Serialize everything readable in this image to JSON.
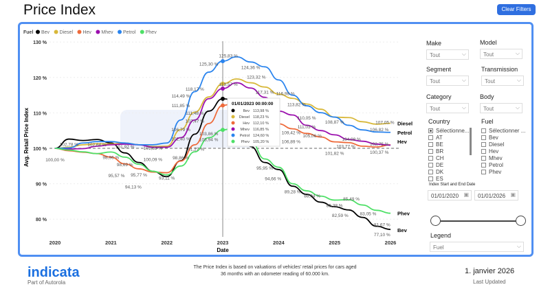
{
  "header": {
    "title": "Price Index",
    "clear_filters": "Clear Filters"
  },
  "filters": {
    "make": {
      "label": "Make",
      "value": "Tout"
    },
    "model": {
      "label": "Model",
      "value": "Tout"
    },
    "segment": {
      "label": "Segment",
      "value": "Tout"
    },
    "transmission": {
      "label": "Transmission",
      "value": "Tout"
    },
    "category": {
      "label": "Category",
      "value": "Tout"
    },
    "body": {
      "label": "Body",
      "value": "Tout"
    },
    "country": {
      "label": "Country",
      "items": [
        "Sélectionne...",
        "AT",
        "BE",
        "BR",
        "CH",
        "DE",
        "DK",
        "ES"
      ],
      "checked": [
        true,
        false,
        false,
        false,
        false,
        false,
        false,
        false
      ]
    },
    "fuel": {
      "label": "Fuel",
      "items": [
        "Sélectionner ...",
        "Bev",
        "Diesel",
        "Hev",
        "Mhev",
        "Petrol",
        "Phev"
      ]
    },
    "date_range": {
      "label": "Index Start and End Date",
      "start": "01/01/2020",
      "end": "01/01/2026"
    },
    "legend": {
      "label": "Legend",
      "value": "Fuel"
    }
  },
  "footer": {
    "logo": "indicata",
    "logo_sub": "Part of Autorola",
    "note_line1": "The Price Index is based on valuations of vehicles' retail prices for cars aged",
    "note_line2": "36 months with an odometer reading of 60.000 km.",
    "date": "1. janvier 2026",
    "date_label": "Last Updated"
  },
  "tooltip": {
    "title": "01/01/2023 00:00:00",
    "rows": [
      {
        "name": "Bev",
        "value": "113,98 %",
        "color": "#000000"
      },
      {
        "name": "Diesel",
        "value": "118,23 %",
        "color": "#d8b83a"
      },
      {
        "name": "Hev",
        "value": "112,10 %",
        "color": "#ee6a3a"
      },
      {
        "name": "Mhev",
        "value": "116,85 %",
        "color": "#9b0fae"
      },
      {
        "name": "Petrol",
        "value": "124,60 %",
        "color": "#2a84ee"
      },
      {
        "name": "Phev",
        "value": "105,20 %",
        "color": "#4ee067"
      }
    ]
  },
  "chart_data": {
    "type": "line",
    "legend_title": "Fuel",
    "legend_position": "top-left",
    "xlabel": "Date",
    "ylabel": "Avg. Retail Price Index",
    "xlim": [
      2020,
      2026
    ],
    "ylim": [
      77,
      131
    ],
    "x_ticks": [
      "2020",
      "2021",
      "2022",
      "2023",
      "2024",
      "2025",
      "2026"
    ],
    "y_ticks": [
      {
        "v": 80,
        "label": "80 %"
      },
      {
        "v": 90,
        "label": "90 %"
      },
      {
        "v": 100,
        "label": "100 %"
      },
      {
        "v": 110,
        "label": "110 %"
      },
      {
        "v": 120,
        "label": "120 %"
      },
      {
        "v": 130,
        "label": "130 %"
      }
    ],
    "reference_line": 100,
    "crosshair_x": 2023,
    "x": [
      2020,
      2020.25,
      2020.5,
      2020.75,
      2021,
      2021.25,
      2021.5,
      2021.75,
      2022,
      2022.25,
      2022.5,
      2022.75,
      2023,
      2023.25,
      2023.5,
      2023.75,
      2024,
      2024.25,
      2024.5,
      2024.75,
      2025,
      2025.25,
      2025.5,
      2025.75,
      2026
    ],
    "series": [
      {
        "name": "Bev",
        "color": "#000000",
        "end_label": "Bev",
        "values": [
          100,
          102.6,
          102.2,
          102.5,
          101.5,
          98.7,
          96,
          93.5,
          92,
          96.5,
          104,
          110.5,
          113.98,
          113.5,
          100.5,
          96,
          94,
          89.3,
          87,
          84.8,
          83.5,
          82.6,
          80.5,
          78,
          77.1
        ]
      },
      {
        "name": "Diesel",
        "color": "#d8b83a",
        "end_label": "Diesel",
        "values": [
          100,
          100.3,
          101,
          101.3,
          101.2,
          101.5,
          101,
          100.5,
          100.6,
          105.3,
          110.2,
          114.5,
          118.23,
          119.57,
          118.5,
          117.3,
          115.3,
          114.1,
          112.5,
          111.03,
          108.8,
          108.67,
          107.5,
          106.8,
          107.05
        ]
      },
      {
        "name": "Hev",
        "color": "#ee6a3a",
        "end_label": "Hev",
        "values": [
          100,
          99.3,
          98.9,
          98.5,
          97.5,
          95.6,
          94.2,
          93.3,
          93.11,
          96.4,
          101,
          107,
          112.1,
          113,
          112.5,
          110.5,
          106.9,
          105.5,
          104.2,
          103.2,
          101.82,
          101.6,
          100.6,
          100.37,
          101
        ]
      },
      {
        "name": "Mhev",
        "color": "#9b0fae",
        "values": [
          100,
          99.8,
          99.9,
          100.6,
          101,
          101.2,
          101,
          100.3,
          100.3,
          103,
          108,
          114,
          116.85,
          118.5,
          117,
          114.4,
          110.5,
          109.4,
          106.5,
          105,
          103.8,
          102.5,
          102,
          101.2,
          100.87
        ]
      },
      {
        "name": "Petrol",
        "color": "#2a84ee",
        "end_label": "Petrol",
        "values": [
          100,
          100.1,
          101.5,
          101.9,
          101.9,
          101.5,
          101,
          101,
          101.5,
          108,
          116,
          121.5,
          124.6,
          125.83,
          124.36,
          123,
          119.3,
          115,
          112,
          110.05,
          108.81,
          106.5,
          105.2,
          104.6,
          104.5
        ]
      },
      {
        "name": "Phev",
        "color": "#4ee067",
        "end_label": "Phev",
        "values": [
          100,
          99.5,
          99,
          98.5,
          98.96,
          97.5,
          95.5,
          93.5,
          92.5,
          95,
          99,
          103,
          105.2,
          106,
          102,
          97,
          94.66,
          90,
          88,
          86.5,
          85.38,
          85.49,
          84,
          82.5,
          81.67
        ]
      }
    ],
    "data_labels": [
      {
        "x": 2020,
        "y": 100,
        "text": "100,00 %"
      },
      {
        "x": 2020.25,
        "y": 102.6,
        "text": "102,78 %"
      },
      {
        "x": 2020.75,
        "y": 102.5,
        "text": "102,64 %"
      },
      {
        "x": 2021,
        "y": 98.96,
        "text": "98,96 %"
      },
      {
        "x": 2021.25,
        "y": 101.97,
        "text": "101,97 %"
      },
      {
        "x": 2021.25,
        "y": 98.69,
        "text": "98,69 %"
      },
      {
        "x": 2021.1,
        "y": 95.57,
        "text": "95,57 %"
      },
      {
        "x": 2021.5,
        "y": 95.77,
        "text": "95,77 %"
      },
      {
        "x": 2021.4,
        "y": 94.13,
        "text": "94,13 %"
      },
      {
        "x": 2021.75,
        "y": 101.53,
        "text": "101,53 %"
      },
      {
        "x": 2021.75,
        "y": 100.09,
        "text": "100,09 %"
      },
      {
        "x": 2022,
        "y": 93.11,
        "text": "93,11 %"
      },
      {
        "x": 2022.25,
        "y": 98.86,
        "text": "98,86 %"
      },
      {
        "x": 2022.5,
        "y": 101.27,
        "text": "101,27 %"
      },
      {
        "x": 2022.25,
        "y": 102.4,
        "text": "102,40 %"
      },
      {
        "x": 2022.75,
        "y": 103.94,
        "text": "103,94 %"
      },
      {
        "x": 2022.75,
        "y": 103.86,
        "text": "103,86 %"
      },
      {
        "x": 2022.25,
        "y": 106.79,
        "text": "106,79 %"
      },
      {
        "x": 2022.5,
        "y": 107.47,
        "text": "107,47 %"
      },
      {
        "x": 2022.5,
        "y": 111.48,
        "text": "111,48 %"
      },
      {
        "x": 2022.25,
        "y": 111.85,
        "text": "111,85 %"
      },
      {
        "x": 2022.25,
        "y": 114.49,
        "text": "114,49 %"
      },
      {
        "x": 2022.5,
        "y": 118.17,
        "text": "118,17 %"
      },
      {
        "x": 2022.75,
        "y": 125.3,
        "text": "125,30 %"
      },
      {
        "x": 2023.1,
        "y": 125.83,
        "text": "125,83 %"
      },
      {
        "x": 2023.1,
        "y": 119.57,
        "text": "119,57 %"
      },
      {
        "x": 2023.5,
        "y": 124.36,
        "text": "124,36 %"
      },
      {
        "x": 2023.6,
        "y": 123.32,
        "text": "123,32 %"
      },
      {
        "x": 2023.75,
        "y": 117.31,
        "text": "117,31 %"
      },
      {
        "x": 2023.9,
        "y": 116.98,
        "text": "116,98 %"
      },
      {
        "x": 2024.1,
        "y": 113.82,
        "text": "113,82 %"
      },
      {
        "x": 2024.5,
        "y": 110.05,
        "text": "110,05 %"
      },
      {
        "x": 2024.5,
        "y": 111.03,
        "text": "111,03 %"
      },
      {
        "x": 2024,
        "y": 109.42,
        "text": "109,42 %"
      },
      {
        "x": 2024,
        "y": 106.89,
        "text": "106,89 %"
      },
      {
        "x": 2024.6,
        "y": 105.06,
        "text": "105,06 %"
      },
      {
        "x": 2025,
        "y": 108.87,
        "text": "108,87 %"
      },
      {
        "x": 2025.3,
        "y": 104.08,
        "text": "104,08 %"
      },
      {
        "x": 2025.2,
        "y": 103.77,
        "text": "103,77 %"
      },
      {
        "x": 2025,
        "y": 101.82,
        "text": "101,82 %"
      },
      {
        "x": 2025.8,
        "y": 106.82,
        "text": "106,82 %"
      },
      {
        "x": 2025.8,
        "y": 102.75,
        "text": "102,75 %"
      },
      {
        "x": 2025.9,
        "y": 107.05,
        "text": "107,05 %"
      },
      {
        "x": 2025.8,
        "y": 100.37,
        "text": "100,37 %"
      },
      {
        "x": 2023.75,
        "y": 95.95,
        "text": "95,95 %"
      },
      {
        "x": 2023.9,
        "y": 94.66,
        "text": "94,66 %"
      },
      {
        "x": 2024.25,
        "y": 89.28,
        "text": "89,28 %"
      },
      {
        "x": 2024.6,
        "y": 88.04,
        "text": "88,04 %"
      },
      {
        "x": 2025,
        "y": 85.38,
        "text": "85,38 %"
      },
      {
        "x": 2025.3,
        "y": 85.49,
        "text": "85,49 %"
      },
      {
        "x": 2025.1,
        "y": 82.59,
        "text": "82,59 %"
      },
      {
        "x": 2025.6,
        "y": 83.05,
        "text": "83,05 %"
      },
      {
        "x": 2025.85,
        "y": 81.67,
        "text": "81,67 %"
      },
      {
        "x": 2025.85,
        "y": 77.1,
        "text": "77,10 %"
      }
    ]
  }
}
